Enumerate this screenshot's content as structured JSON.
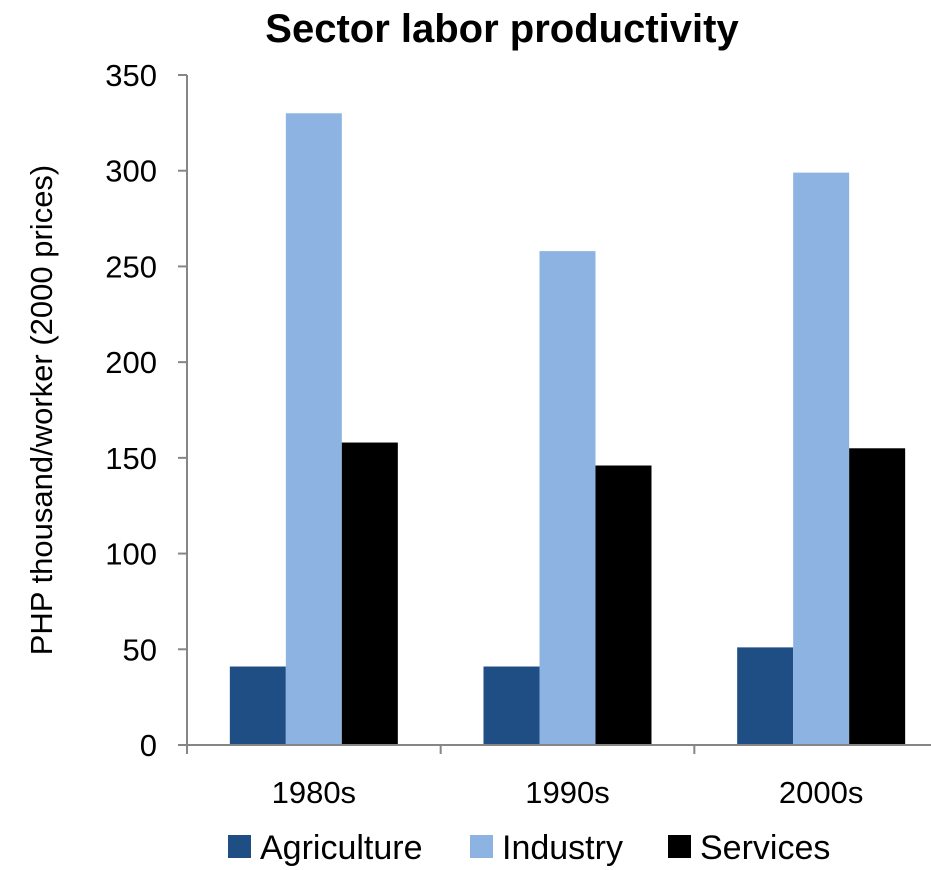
{
  "chart_data": {
    "type": "bar",
    "title": "Sector labor productivity",
    "xlabel": "",
    "ylabel": "PHP thousand/worker (2000 prices)",
    "categories": [
      "1980s",
      "1990s",
      "2000s"
    ],
    "series": [
      {
        "name": "Agriculture",
        "color": "#1f4e85",
        "values": [
          41,
          41,
          51
        ]
      },
      {
        "name": "Industry",
        "color": "#8db3e2",
        "values": [
          330,
          258,
          299
        ]
      },
      {
        "name": "Services",
        "color": "#000000",
        "values": [
          158,
          146,
          155
        ]
      }
    ],
    "ylim": [
      0,
      350
    ],
    "yticks": [
      "0",
      "50",
      "100",
      "150",
      "200",
      "250",
      "300",
      "350"
    ],
    "grid": false,
    "legend_position": "bottom"
  }
}
